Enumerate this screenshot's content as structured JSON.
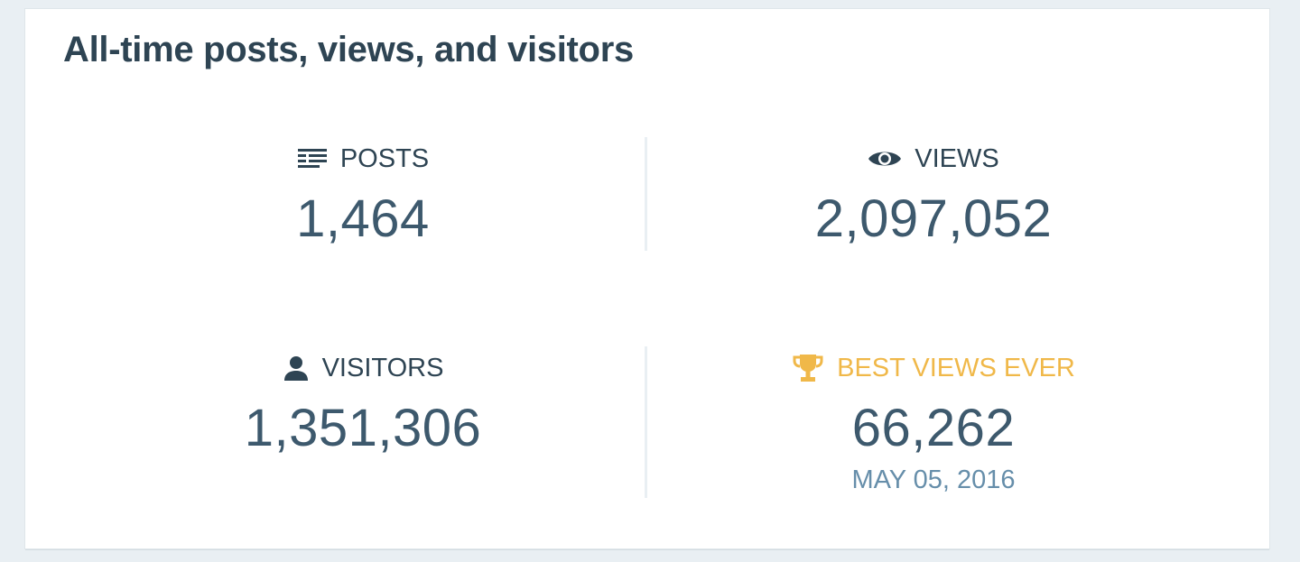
{
  "card": {
    "title": "All-time posts, views, and visitors"
  },
  "stats": {
    "posts": {
      "label": "POSTS",
      "value": "1,464",
      "icon": "posts-icon"
    },
    "views": {
      "label": "VIEWS",
      "value": "2,097,052",
      "icon": "eye-icon"
    },
    "visitors": {
      "label": "VISITORS",
      "value": "1,351,306",
      "icon": "person-icon"
    },
    "best": {
      "label": "BEST VIEWS EVER",
      "value": "66,262",
      "date": "MAY 05, 2016",
      "icon": "trophy-icon"
    }
  },
  "colors": {
    "title": "#2e4453",
    "value": "#3d596d",
    "best_accent": "#f0b849",
    "date": "#668eaa",
    "background": "#e9eff3"
  }
}
